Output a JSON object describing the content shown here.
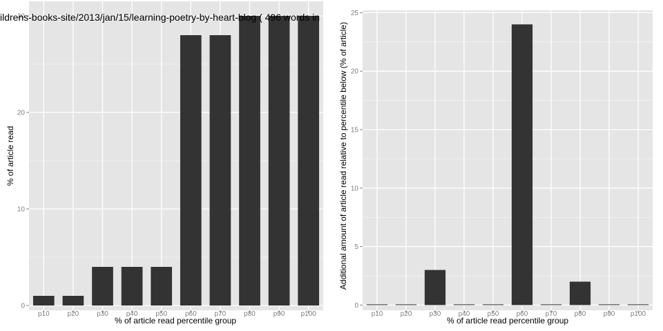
{
  "chart_data": [
    {
      "type": "bar",
      "title": "ildrens-books-site/2013/jan/15/learning-poetry-by-heart-blog ( 496 words in",
      "xlabel": "% of article read percentile group",
      "ylabel": "% of article read",
      "categories": [
        "p10",
        "p20",
        "p30",
        "p40",
        "p50",
        "p60",
        "p70",
        "p80",
        "p90",
        "p100"
      ],
      "values": [
        1,
        1,
        4,
        4,
        4,
        28,
        28,
        30,
        30,
        30
      ],
      "ylim": [
        -0.5,
        31.5
      ],
      "yticks": [
        0,
        10,
        20,
        30
      ],
      "grid": true,
      "colors": {
        "bar": "#333333",
        "panel": "#e5e5e5",
        "grid_major": "#ffffff",
        "grid_minor": "#f2f2f2"
      }
    },
    {
      "type": "bar",
      "title": "",
      "xlabel": "% of article read percentile group",
      "ylabel": "Additional amount of article read relative to percentile below (% of article)",
      "categories": [
        "p10",
        "p20",
        "p30",
        "p40",
        "p50",
        "p60",
        "p70",
        "p80",
        "p90",
        "p100"
      ],
      "values": [
        0,
        0,
        3,
        0,
        0,
        24,
        0,
        2,
        0,
        0
      ],
      "ylim": [
        -0.45,
        25.2
      ],
      "yticks": [
        0,
        5,
        10,
        15,
        20,
        25
      ],
      "grid": true,
      "colors": {
        "bar": "#333333",
        "panel": "#e5e5e5",
        "grid_major": "#ffffff",
        "grid_minor": "#f2f2f2"
      }
    }
  ]
}
